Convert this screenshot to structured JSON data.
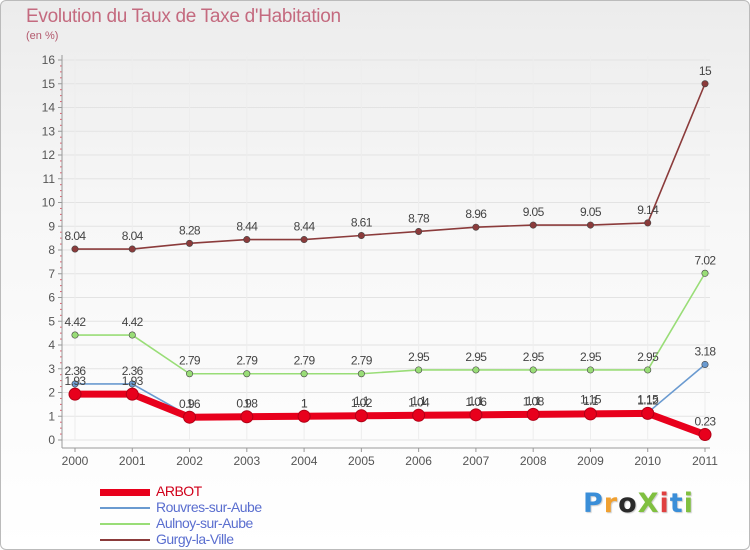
{
  "title": "Evolution du Taux de Taxe d'Habitation",
  "subtitle": "(en %)",
  "logo": {
    "text": "ProXiti",
    "colors": [
      "#3a8ed8",
      "#f0a030",
      "#2a2a2a",
      "#80c040",
      "#e04040",
      "#3a8ed8",
      "#80c040"
    ]
  },
  "chart_data": {
    "type": "line",
    "title": "Evolution du Taux de Taxe d'Habitation",
    "ylabel": "(en %)",
    "xlabel": "",
    "ylim": [
      0,
      16
    ],
    "yticks": [
      0,
      1,
      2,
      3,
      4,
      5,
      6,
      7,
      8,
      9,
      10,
      11,
      12,
      13,
      14,
      15,
      16
    ],
    "categories": [
      "2000",
      "2001",
      "2002",
      "2003",
      "2004",
      "2005",
      "2006",
      "2007",
      "2008",
      "2009",
      "2010",
      "2011"
    ],
    "grid": true,
    "legend_position": "bottom-left",
    "series": [
      {
        "name": "ARBOT",
        "color": "#e8001c",
        "values": [
          1.93,
          1.93,
          0.96,
          0.98,
          1,
          1.02,
          1.04,
          1.06,
          1.08,
          1.1,
          1.12,
          0.23
        ],
        "labels": [
          "1.93",
          "1.93",
          "0.96",
          "0.98",
          "1",
          "1.02",
          "1.04",
          "1.06",
          "1.08",
          "1.1",
          "1.12",
          "0.23"
        ]
      },
      {
        "name": "Rouvres-sur-Aube",
        "color": "#6a9ad0",
        "values": [
          2.36,
          2.36,
          1,
          1,
          1,
          1.1,
          1.1,
          1.1,
          1.1,
          1.15,
          1.15,
          3.18
        ],
        "labels": [
          "2.36",
          "2.36",
          "1",
          "1",
          "1",
          "1.1",
          "1.1",
          "1.1",
          "1.1",
          "1.15",
          "1.15",
          "3.18"
        ]
      },
      {
        "name": "Aulnoy-sur-Aube",
        "color": "#99dd77",
        "values": [
          4.42,
          4.42,
          2.79,
          2.79,
          2.79,
          2.79,
          2.95,
          2.95,
          2.95,
          2.95,
          2.95,
          7.02
        ],
        "labels": [
          "4.42",
          "4.42",
          "2.79",
          "2.79",
          "2.79",
          "2.79",
          "2.95",
          "2.95",
          "2.95",
          "2.95",
          "2.95",
          "7.02"
        ]
      },
      {
        "name": "Gurgy-la-Ville",
        "color": "#8b3b3b",
        "values": [
          8.04,
          8.04,
          8.28,
          8.44,
          8.44,
          8.61,
          8.78,
          8.96,
          9.05,
          9.05,
          9.14,
          15
        ],
        "labels": [
          "8.04",
          "8.04",
          "8.28",
          "8.44",
          "8.44",
          "8.61",
          "8.78",
          "8.96",
          "9.05",
          "9.05",
          "9.14",
          "15"
        ]
      }
    ]
  }
}
